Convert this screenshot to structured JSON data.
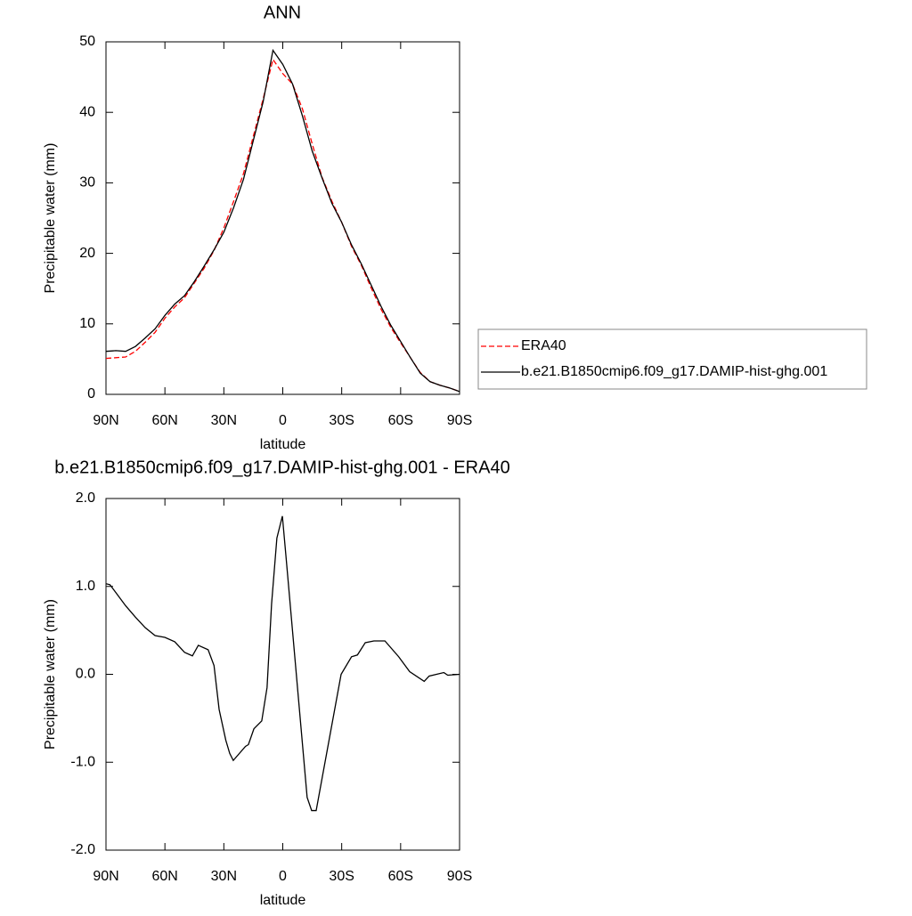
{
  "chart_data": [
    {
      "type": "line",
      "title": "ANN",
      "xlabel": "latitude",
      "ylabel": "Precipitable water (mm)",
      "x": [
        90,
        85,
        80,
        75,
        70,
        65,
        60,
        55,
        50,
        45,
        40,
        35,
        30,
        25,
        20,
        15,
        10,
        5,
        0,
        -5,
        -10,
        -15,
        -20,
        -25,
        -30,
        -35,
        -40,
        -45,
        -50,
        -55,
        -60,
        -65,
        -70,
        -75,
        -80,
        -85,
        -90
      ],
      "series": [
        {
          "name": "ERA40",
          "color": "#ff0000",
          "dash": true,
          "values": [
            5.1,
            5.2,
            5.3,
            6.1,
            7.4,
            8.8,
            10.8,
            12.4,
            13.7,
            15.8,
            17.9,
            20.4,
            23.6,
            27.4,
            31.3,
            36.6,
            41.9,
            47.5,
            45.5,
            44.0,
            40.5,
            35.5,
            30.8,
            27.4,
            24.4,
            21.0,
            18.3,
            15.1,
            12.1,
            9.5,
            7.3,
            5.2,
            3.1,
            1.8,
            1.3,
            0.9,
            0.4
          ]
        },
        {
          "name": "b.e21.B1850cmip6.f09_g17.DAMIP-hist-ghg.001",
          "color": "#000000",
          "dash": false,
          "values": [
            6.1,
            6.2,
            6.1,
            6.8,
            8.0,
            9.3,
            11.2,
            12.8,
            14.0,
            16.0,
            18.2,
            20.5,
            23.0,
            26.5,
            30.5,
            36.0,
            41.5,
            48.8,
            46.8,
            44.0,
            39.5,
            34.5,
            30.7,
            27.1,
            24.4,
            21.2,
            18.5,
            15.5,
            12.5,
            9.8,
            7.5,
            5.2,
            3.0,
            1.8,
            1.3,
            0.9,
            0.4
          ]
        }
      ],
      "xlim": [
        90,
        -90
      ],
      "xticks": [
        {
          "value": 90,
          "label": "90N"
        },
        {
          "value": 60,
          "label": "60N"
        },
        {
          "value": 30,
          "label": "30N"
        },
        {
          "value": 0,
          "label": "0"
        },
        {
          "value": -30,
          "label": "30S"
        },
        {
          "value": -60,
          "label": "60S"
        },
        {
          "value": -90,
          "label": "90S"
        }
      ],
      "ylim": [
        0,
        50
      ],
      "yticks": [
        0,
        10,
        20,
        30,
        40,
        50
      ],
      "legend": "right"
    },
    {
      "type": "line",
      "title": "b.e21.B1850cmip6.f09_g17.DAMIP-hist-ghg.001 - ERA40",
      "xlabel": "latitude",
      "ylabel": "Precipitable water (mm)",
      "x": [
        90,
        88,
        85,
        80,
        75,
        70,
        65,
        60,
        55,
        50,
        46,
        43,
        38,
        35,
        32.4,
        29,
        27,
        25.2,
        19,
        17.5,
        14.7,
        10.7,
        8,
        5.7,
        3,
        0.2,
        -1.6,
        -12.4,
        -14.7,
        -17,
        -29.7,
        -35,
        -38,
        -42,
        -46.4,
        -52,
        -59,
        -64.6,
        -72,
        -74.5,
        -82,
        -84,
        -90
      ],
      "series": [
        {
          "name": null,
          "color": "#000000",
          "values": [
            1.03,
            1.02,
            0.93,
            0.78,
            0.65,
            0.53,
            0.44,
            0.42,
            0.37,
            0.25,
            0.21,
            0.33,
            0.28,
            0.1,
            -0.4,
            -0.75,
            -0.9,
            -0.98,
            -0.82,
            -0.8,
            -0.62,
            -0.53,
            -0.15,
            0.8,
            1.55,
            1.8,
            1.35,
            -1.4,
            -1.55,
            -1.55,
            0.0,
            0.2,
            0.22,
            0.36,
            0.38,
            0.38,
            0.2,
            0.03,
            -0.08,
            -0.02,
            0.02,
            -0.01,
            0.0
          ]
        }
      ],
      "xlim": [
        90,
        -90
      ],
      "xticks": [
        {
          "value": 90,
          "label": "90N"
        },
        {
          "value": 60,
          "label": "60N"
        },
        {
          "value": 30,
          "label": "30N"
        },
        {
          "value": 0,
          "label": "0"
        },
        {
          "value": -30,
          "label": "30S"
        },
        {
          "value": -60,
          "label": "60S"
        },
        {
          "value": -90,
          "label": "90S"
        }
      ],
      "ylim": [
        -2,
        2
      ],
      "yticks": [
        {
          "value": -2,
          "label": "-2.0"
        },
        {
          "value": -1,
          "label": "-1.0"
        },
        {
          "value": 0,
          "label": "0.0"
        },
        {
          "value": 1,
          "label": "1.0"
        },
        {
          "value": 2,
          "label": "2.0"
        }
      ]
    }
  ]
}
